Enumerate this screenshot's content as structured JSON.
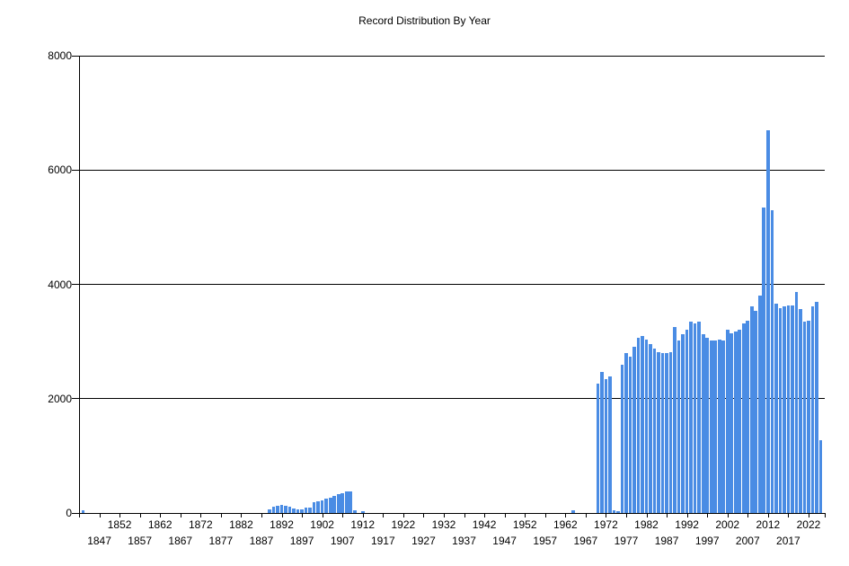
{
  "chart_data": {
    "type": "bar",
    "title": "Record Distribution By Year",
    "xlabel": "",
    "ylabel": "",
    "legend": false,
    "grid": true,
    "bar_color": "#4a8ce4",
    "axis_color": "#000000",
    "background_color": "#ffffff",
    "ylim": [
      0,
      8000
    ],
    "yticks": [
      0,
      2000,
      4000,
      6000,
      8000
    ],
    "xlim": [
      1842,
      2026
    ],
    "xticks": [
      1847,
      1852,
      1857,
      1862,
      1867,
      1872,
      1877,
      1882,
      1887,
      1892,
      1897,
      1902,
      1907,
      1912,
      1917,
      1922,
      1927,
      1932,
      1937,
      1942,
      1947,
      1952,
      1957,
      1962,
      1967,
      1972,
      1977,
      1982,
      1987,
      1992,
      1997,
      2002,
      2007,
      2012,
      2017,
      2022
    ],
    "xtick_label_rows": "staggered",
    "points": [
      [
        1843,
        50
      ],
      [
        1889,
        65
      ],
      [
        1890,
        110
      ],
      [
        1891,
        120
      ],
      [
        1892,
        140
      ],
      [
        1893,
        120
      ],
      [
        1894,
        110
      ],
      [
        1895,
        80
      ],
      [
        1896,
        60
      ],
      [
        1897,
        65
      ],
      [
        1898,
        95
      ],
      [
        1899,
        100
      ],
      [
        1900,
        185
      ],
      [
        1901,
        200
      ],
      [
        1902,
        215
      ],
      [
        1903,
        250
      ],
      [
        1904,
        275
      ],
      [
        1905,
        300
      ],
      [
        1906,
        330
      ],
      [
        1907,
        350
      ],
      [
        1908,
        375
      ],
      [
        1909,
        380
      ],
      [
        1910,
        40
      ],
      [
        1912,
        25
      ],
      [
        1964,
        40
      ],
      [
        1970,
        2270
      ],
      [
        1971,
        2470
      ],
      [
        1972,
        2340
      ],
      [
        1973,
        2390
      ],
      [
        1974,
        40
      ],
      [
        1975,
        25
      ],
      [
        1976,
        2600
      ],
      [
        1977,
        2800
      ],
      [
        1978,
        2740
      ],
      [
        1979,
        2900
      ],
      [
        1980,
        3070
      ],
      [
        1981,
        3090
      ],
      [
        1982,
        3040
      ],
      [
        1983,
        2960
      ],
      [
        1984,
        2870
      ],
      [
        1985,
        2820
      ],
      [
        1986,
        2790
      ],
      [
        1987,
        2800
      ],
      [
        1988,
        2820
      ],
      [
        1989,
        3260
      ],
      [
        1990,
        3020
      ],
      [
        1991,
        3130
      ],
      [
        1992,
        3210
      ],
      [
        1993,
        3340
      ],
      [
        1994,
        3310
      ],
      [
        1995,
        3350
      ],
      [
        1996,
        3130
      ],
      [
        1997,
        3060
      ],
      [
        1998,
        3020
      ],
      [
        1999,
        3020
      ],
      [
        2000,
        3040
      ],
      [
        2001,
        3020
      ],
      [
        2002,
        3210
      ],
      [
        2003,
        3140
      ],
      [
        2004,
        3180
      ],
      [
        2005,
        3210
      ],
      [
        2006,
        3320
      ],
      [
        2007,
        3370
      ],
      [
        2008,
        3610
      ],
      [
        2009,
        3530
      ],
      [
        2010,
        3810
      ],
      [
        2011,
        5340
      ],
      [
        2012,
        6700
      ],
      [
        2013,
        5290
      ],
      [
        2014,
        3660
      ],
      [
        2015,
        3590
      ],
      [
        2016,
        3610
      ],
      [
        2017,
        3630
      ],
      [
        2018,
        3630
      ],
      [
        2019,
        3870
      ],
      [
        2020,
        3570
      ],
      [
        2021,
        3350
      ],
      [
        2022,
        3370
      ],
      [
        2023,
        3620
      ],
      [
        2024,
        3700
      ],
      [
        2025,
        1280
      ]
    ]
  }
}
